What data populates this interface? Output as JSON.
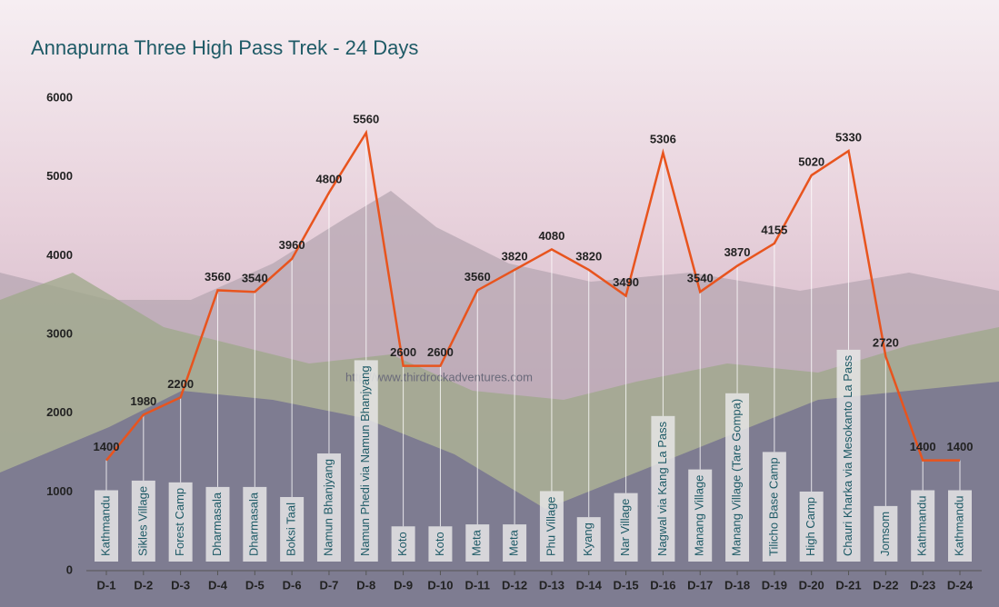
{
  "chart_data": {
    "type": "line",
    "title": "Annapurna Three High Pass Trek - 24 Days",
    "watermark": "http://www.thirdrockadventures.com",
    "categories": [
      "D-1",
      "D-2",
      "D-3",
      "D-4",
      "D-5",
      "D-6",
      "D-7",
      "D-8",
      "D-9",
      "D-10",
      "D-11",
      "D-12",
      "D-13",
      "D-14",
      "D-15",
      "D-16",
      "D-17",
      "D-18",
      "D-19",
      "D-20",
      "D-21",
      "D-22",
      "D-23",
      "D-24"
    ],
    "locations": [
      "Kathmandu",
      "Sikles Village",
      "Forest Camp",
      "Dharmasala",
      "Dharmasala",
      "Boksi Taal",
      "Namun Bhanjyang",
      "Namun Phedi via Namun Bhanjyang",
      "Koto",
      "Koto",
      "Meta",
      "Meta",
      "Phu Village",
      "Kyang",
      "Nar Village",
      "Nagwal via Kang La Pass",
      "Manang Village",
      "Manang Village (Tare Gompa)",
      "Tilicho Base Camp",
      "High Camp",
      "Chauri Kharka via Mesokanto La Pass",
      "Jomsom",
      "Kathmandu",
      "Kathmandu"
    ],
    "values": [
      1400,
      1980,
      2200,
      3560,
      3540,
      3960,
      4800,
      5560,
      2600,
      2600,
      3560,
      3820,
      4080,
      3820,
      3490,
      5306,
      3540,
      3870,
      4155,
      5020,
      5330,
      2720,
      1400,
      1400
    ],
    "color": "#e8541e",
    "ylim": [
      0,
      6000
    ],
    "yticks": [
      0,
      1000,
      2000,
      3000,
      4000,
      5000,
      6000
    ],
    "grid": true
  }
}
